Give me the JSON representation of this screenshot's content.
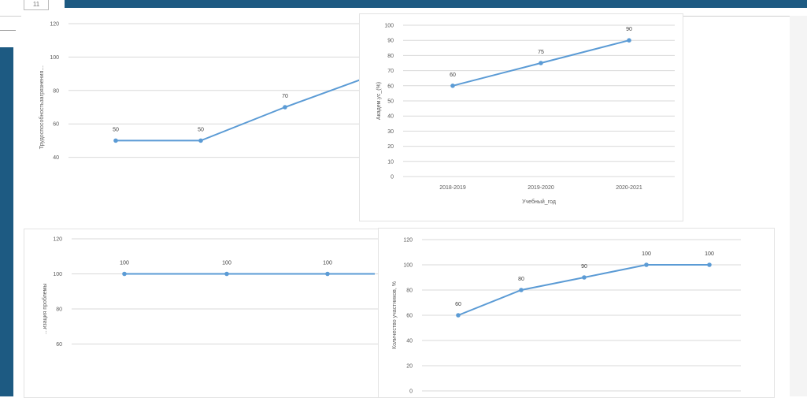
{
  "slide": {
    "number": "11"
  },
  "colors": {
    "line": "#5b9bd5",
    "grid": "#d9d9d9",
    "bar": "#1d5a82"
  },
  "chart_data": [
    {
      "id": "c1",
      "type": "line",
      "categories": [
        "",
        "",
        ""
      ],
      "values": [
        50,
        50,
        70
      ],
      "data_labels": [
        "50",
        "50",
        "70"
      ],
      "yticks": [
        "120",
        "100",
        "80",
        "60",
        "40"
      ],
      "ylim": [
        20,
        120
      ],
      "ylabel": "Трудоспособностьзагрязнения…",
      "xlabel": "",
      "grid": true
    },
    {
      "id": "c2",
      "type": "line",
      "categories": [
        "2018-2019",
        "2019-2020",
        "2020-2021"
      ],
      "values": [
        60,
        75,
        90
      ],
      "data_labels": [
        "60",
        "75",
        "90"
      ],
      "yticks": [
        "100",
        "90",
        "80",
        "70",
        "60",
        "50",
        "40",
        "30",
        "20",
        "10",
        "0"
      ],
      "ylim": [
        0,
        100
      ],
      "ylabel": "Академ.ус_(%)",
      "xlabel": "Учебный_год",
      "grid": true
    },
    {
      "id": "c3",
      "type": "line",
      "categories": [
        "",
        "",
        ""
      ],
      "values": [
        100,
        100,
        100
      ],
      "data_labels": [
        "100",
        "100",
        "100"
      ],
      "yticks": [
        "120",
        "100",
        "80",
        "60"
      ],
      "ylim": [
        40,
        120
      ],
      "ylabel": "…изация проблемы",
      "xlabel": "",
      "grid": true
    },
    {
      "id": "c4",
      "type": "line",
      "categories": [
        "",
        "",
        "",
        "",
        ""
      ],
      "values": [
        60,
        80,
        90,
        100,
        100
      ],
      "data_labels": [
        "60",
        "80",
        "90",
        "100",
        "100"
      ],
      "yticks": [
        "120",
        "100",
        "80",
        "60",
        "40",
        "20",
        "0"
      ],
      "ylim": [
        0,
        120
      ],
      "ylabel": "Количество участников, %",
      "xlabel": "",
      "grid": true
    }
  ]
}
